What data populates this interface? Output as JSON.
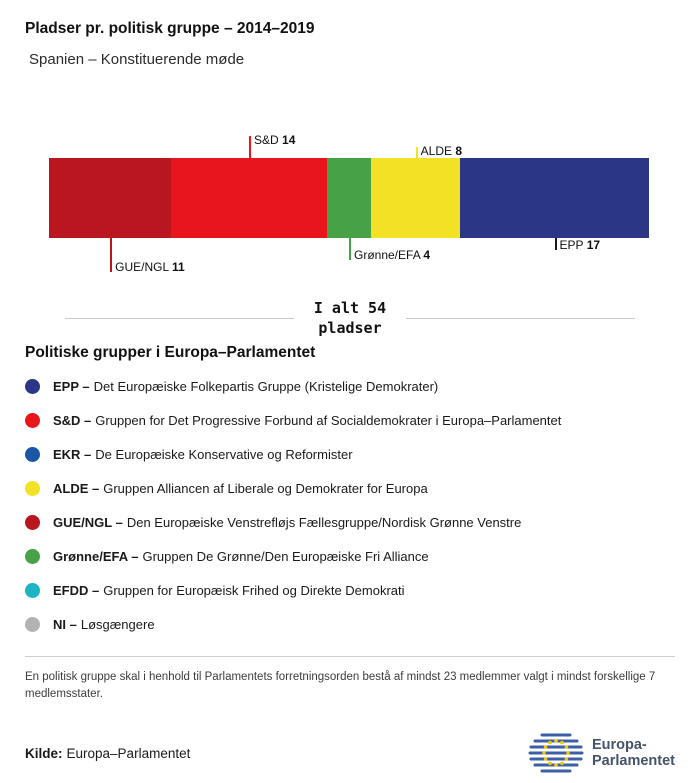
{
  "header": {
    "title": "Pladser pr. politisk gruppe – 2014–2019",
    "subtitle": "Spanien – Konstituerende møde"
  },
  "chart_data": {
    "type": "bar",
    "variant": "horizontal-stacked",
    "title": "Pladser pr. politisk gruppe – 2014–2019",
    "subtitle": "Spanien – Konstituerende møde",
    "total": 54,
    "total_label_line1": "I alt 54",
    "total_label_line2": "pladser",
    "categories": [
      "GUE/NGL",
      "S&D",
      "Grønne/EFA",
      "ALDE",
      "EPP"
    ],
    "values": [
      11,
      14,
      4,
      8,
      17
    ],
    "segments": [
      {
        "name": "GUE/NGL",
        "value": 11,
        "color": "#b9161f",
        "callout_side": "below",
        "callout_length": 34
      },
      {
        "name": "S&D",
        "value": 14,
        "color": "#e9151d",
        "callout_side": "above",
        "callout_length": 22
      },
      {
        "name": "Grønne/EFA",
        "value": 4,
        "color": "#47a147",
        "callout_side": "below",
        "callout_length": 22
      },
      {
        "name": "ALDE",
        "value": 8,
        "color": "#f2e125",
        "callout_side": "above",
        "callout_length": 11
      },
      {
        "name": "EPP",
        "value": 17,
        "color": "#2b3687",
        "callout_side": "below",
        "callout_length": 12,
        "line_color": "#1a1a1a"
      }
    ]
  },
  "legend": {
    "heading": "Politiske grupper i Europa–Parlamentet",
    "items": [
      {
        "abbr": "EPP –",
        "desc": "Det Europæiske Folkepartis Gruppe (Kristelige Demokrater)",
        "color": "#2b3687"
      },
      {
        "abbr": "S&D –",
        "desc": "Gruppen for Det Progressive Forbund af Socialdemokrater i Europa–Parlamentet",
        "color": "#e9151d"
      },
      {
        "abbr": "EKR –",
        "desc": "De Europæiske Konservative og Reformister",
        "color": "#1b55a5"
      },
      {
        "abbr": "ALDE –",
        "desc": "Gruppen Alliancen af Liberale og Demokrater for Europa",
        "color": "#f2e125"
      },
      {
        "abbr": "GUE/NGL –",
        "desc": "Den Europæiske Venstrefløjs Fællesgruppe/Nordisk Grønne Venstre",
        "color": "#b9161f"
      },
      {
        "abbr": "Grønne/EFA –",
        "desc": "Gruppen De Grønne/Den Europæiske Fri Alliance",
        "color": "#47a147"
      },
      {
        "abbr": "EFDD –",
        "desc": "Gruppen for Europæisk Frihed og Direkte Demokrati",
        "color": "#1db4c6"
      },
      {
        "abbr": "NI –",
        "desc": "Løsgængere",
        "color": "#b3b3b3"
      }
    ]
  },
  "footnote": "En politisk gruppe skal i henhold til Parlamentets forretningsorden bestå af mindst 23 medlemmer valgt i mindst forskellige 7 medlemsstater.",
  "source": {
    "label": "Kilde:",
    "text": "Europa–Parlamentet"
  },
  "logo": {
    "line1": "Europa-",
    "line2": "Parlamentet"
  }
}
